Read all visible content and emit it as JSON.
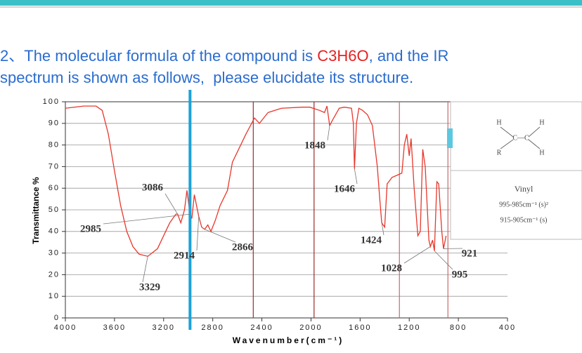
{
  "question": {
    "number": "2、",
    "line1_before": "The molecular formula of the compound is ",
    "formula": "C3H6O",
    "line1_after": ", and the IR",
    "line2": "spectrum is shown as follows,  please elucidate its structure."
  },
  "chart_data": {
    "type": "line",
    "x_label": "Wavenumber(cm⁻¹)",
    "y_label": "Transmittance %",
    "xlim": [
      4000,
      400
    ],
    "ylim": [
      0,
      100
    ],
    "xticks": [
      4000,
      3600,
      3200,
      2800,
      2400,
      2000,
      1600,
      1200,
      800,
      400
    ],
    "yticks": [
      0,
      10,
      20,
      30,
      40,
      50,
      60,
      70,
      80,
      90,
      100
    ],
    "grid": true,
    "series": [
      {
        "color": "#e8372c",
        "x": [
          4000,
          3850,
          3750,
          3700,
          3650,
          3600,
          3550,
          3500,
          3450,
          3400,
          3329,
          3250,
          3200,
          3150,
          3100,
          3086,
          3060,
          3030,
          3010,
          2985,
          2970,
          2950,
          2914,
          2890,
          2866,
          2840,
          2815,
          2780,
          2740,
          2680,
          2640,
          2530,
          2460,
          2420,
          2350,
          2240,
          2070,
          2010,
          1930,
          1890,
          1870,
          1848,
          1820,
          1770,
          1730,
          1670,
          1655,
          1646,
          1630,
          1610,
          1580,
          1540,
          1500,
          1460,
          1440,
          1424,
          1400,
          1380,
          1340,
          1300,
          1260,
          1240,
          1220,
          1200,
          1185,
          1160,
          1130,
          1110,
          1090,
          1070,
          1040,
          1028,
          1010,
          995,
          975,
          960,
          935,
          921,
          900
        ],
        "values": [
          97,
          98,
          98,
          96,
          85,
          68,
          52,
          40,
          33,
          29.5,
          28.5,
          32,
          38,
          44,
          48,
          48,
          44,
          50,
          59,
          48,
          46,
          57,
          47,
          42,
          41,
          43,
          40,
          45,
          52,
          59,
          72,
          85,
          92.5,
          90,
          95,
          97,
          97.5,
          97.5,
          96,
          95,
          98,
          89,
          92,
          97,
          97.5,
          97,
          90,
          69,
          90,
          97,
          96,
          94,
          89,
          70,
          55,
          44,
          42,
          62,
          65,
          66,
          67,
          80,
          85,
          75,
          83,
          60,
          38,
          40,
          78,
          70,
          36,
          33,
          36,
          31,
          63,
          62,
          40,
          32,
          38
        ]
      }
    ],
    "markers": [
      {
        "x": 2985,
        "color": "#1aa3d9"
      },
      {
        "x": 2470,
        "color": "#9c2a2a"
      },
      {
        "x": 1975,
        "color": "#9c2a2a"
      },
      {
        "x": 1280,
        "color": "#c86a6a"
      },
      {
        "x": 885,
        "color": "#c86a6a"
      }
    ],
    "annotations": [
      {
        "label": "3086",
        "x": 3086,
        "y": 48
      },
      {
        "label": "2985",
        "x": 2985,
        "y": 48
      },
      {
        "label": "3329",
        "x": 3329,
        "y": 28.5
      },
      {
        "label": "2914",
        "x": 2914,
        "y": 47
      },
      {
        "label": "2866",
        "x": 2866,
        "y": 41
      },
      {
        "label": "1848",
        "x": 1848,
        "y": 89
      },
      {
        "label": "1646",
        "x": 1646,
        "y": 69
      },
      {
        "label": "1424",
        "x": 1424,
        "y": 44
      },
      {
        "label": "1028",
        "x": 1028,
        "y": 33
      },
      {
        "label": "995",
        "x": 995,
        "y": 31
      },
      {
        "label": "921",
        "x": 921,
        "y": 32
      }
    ]
  },
  "inset": {
    "h_left": "H",
    "h_right": "H",
    "bond": "C—C",
    "r": "R",
    "h_bottom": "H",
    "name": "Vinyl",
    "band1": "995-985cm⁻¹ (s)²",
    "band2": "915-905cm⁻¹ (s)"
  }
}
